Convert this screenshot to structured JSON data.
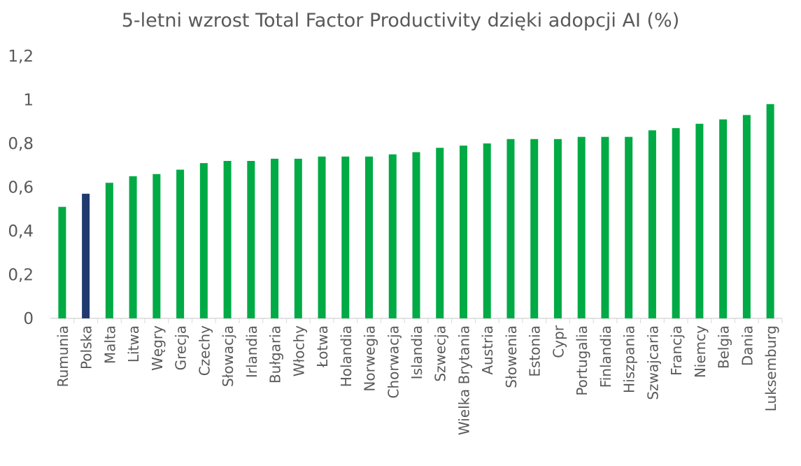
{
  "chart_data": {
    "type": "bar",
    "title": "5-letni wzrost Total Factor Productivity dzięki adopcji AI (%)",
    "xlabel": "",
    "ylabel": "",
    "ylim": [
      0,
      1.2
    ],
    "yticks": [
      "0",
      "0,2",
      "0,4",
      "0,6",
      "0,8",
      "1",
      "1,2"
    ],
    "grid": false,
    "legend": "none",
    "colors": {
      "default": "#00AA44",
      "highlight": "#1F3A6E",
      "axis": "#D9D9D9",
      "text": "#595959"
    },
    "highlight_category": "Polska",
    "categories": [
      "Rumunia",
      "Polska",
      "Malta",
      "Litwa",
      "Węgry",
      "Grecja",
      "Czechy",
      "Słowacja",
      "Irlandia",
      "Bułgaria",
      "Włochy",
      "Łotwa",
      "Holandia",
      "Norwegia",
      "Chorwacja",
      "Islandia",
      "Szwecja",
      "Wielka Brytania",
      "Austria",
      "Słowenia",
      "Estonia",
      "Cypr",
      "Portugalia",
      "Finlandia",
      "Hiszpania",
      "Szwajcaria",
      "Francja",
      "Niemcy",
      "Belgia",
      "Dania",
      "Luksemburg"
    ],
    "values": [
      0.51,
      0.57,
      0.62,
      0.65,
      0.66,
      0.68,
      0.71,
      0.72,
      0.72,
      0.73,
      0.73,
      0.74,
      0.74,
      0.74,
      0.75,
      0.76,
      0.78,
      0.79,
      0.8,
      0.82,
      0.82,
      0.82,
      0.83,
      0.83,
      0.83,
      0.86,
      0.87,
      0.89,
      0.91,
      0.93,
      0.98
    ]
  }
}
